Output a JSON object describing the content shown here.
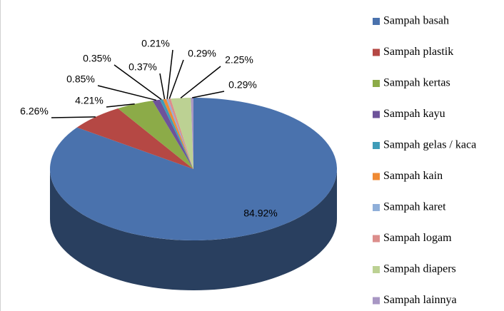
{
  "chart_data": {
    "type": "pie3d",
    "categories": [
      "Sampah basah",
      "Sampah plastik",
      "Sampah kertas",
      "Sampah kayu",
      "Sampah gelas / kaca",
      "Sampah kain",
      "Sampah karet",
      "Sampah logam",
      "Sampah diapers",
      "Sampah lainnya"
    ],
    "values": [
      84.92,
      6.26,
      4.21,
      0.85,
      0.35,
      0.37,
      0.21,
      0.29,
      2.25,
      0.29
    ],
    "value_labels": [
      "84.92%",
      "6.26%",
      "4.21%",
      "0.85%",
      "0.35%",
      "0.37%",
      "0.21%",
      "0.29%",
      "2.25%",
      "0.29%"
    ],
    "colors": [
      "#4a72ad",
      "#b54844",
      "#8cab48",
      "#6e539a",
      "#3f9cb8",
      "#ef8a34",
      "#8fafd9",
      "#dc8e8c",
      "#bcd193",
      "#a897c4"
    ],
    "legend": "right"
  }
}
